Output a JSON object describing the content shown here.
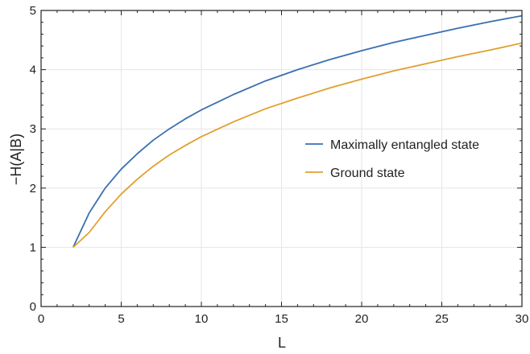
{
  "chart_data": {
    "type": "line",
    "title": "",
    "xlabel": "L",
    "ylabel": "−H(A|B)",
    "xlim": [
      0,
      30
    ],
    "ylim": [
      0,
      5
    ],
    "xticks": [
      0,
      5,
      10,
      15,
      20,
      25,
      30
    ],
    "yticks": [
      0,
      1,
      2,
      3,
      4,
      5
    ],
    "grid": true,
    "legend_position": "center-right",
    "series": [
      {
        "name": "Maximally entangled state",
        "color": "#3a6fb0",
        "x": [
          2,
          3,
          4,
          5,
          6,
          7,
          8,
          9,
          10,
          12,
          14,
          16,
          18,
          20,
          22,
          24,
          26,
          28,
          30
        ],
        "y": [
          1.0,
          1.58,
          2.0,
          2.32,
          2.58,
          2.81,
          3.0,
          3.17,
          3.32,
          3.58,
          3.81,
          4.0,
          4.17,
          4.32,
          4.46,
          4.58,
          4.7,
          4.81,
          4.91
        ]
      },
      {
        "name": "Ground state",
        "color": "#e0a030",
        "x": [
          2,
          3,
          4,
          5,
          6,
          7,
          8,
          9,
          10,
          12,
          14,
          16,
          18,
          20,
          22,
          24,
          26,
          28,
          30
        ],
        "y": [
          1.0,
          1.25,
          1.6,
          1.9,
          2.15,
          2.37,
          2.56,
          2.72,
          2.87,
          3.12,
          3.34,
          3.52,
          3.69,
          3.84,
          3.98,
          4.1,
          4.22,
          4.33,
          4.45
        ]
      }
    ]
  }
}
